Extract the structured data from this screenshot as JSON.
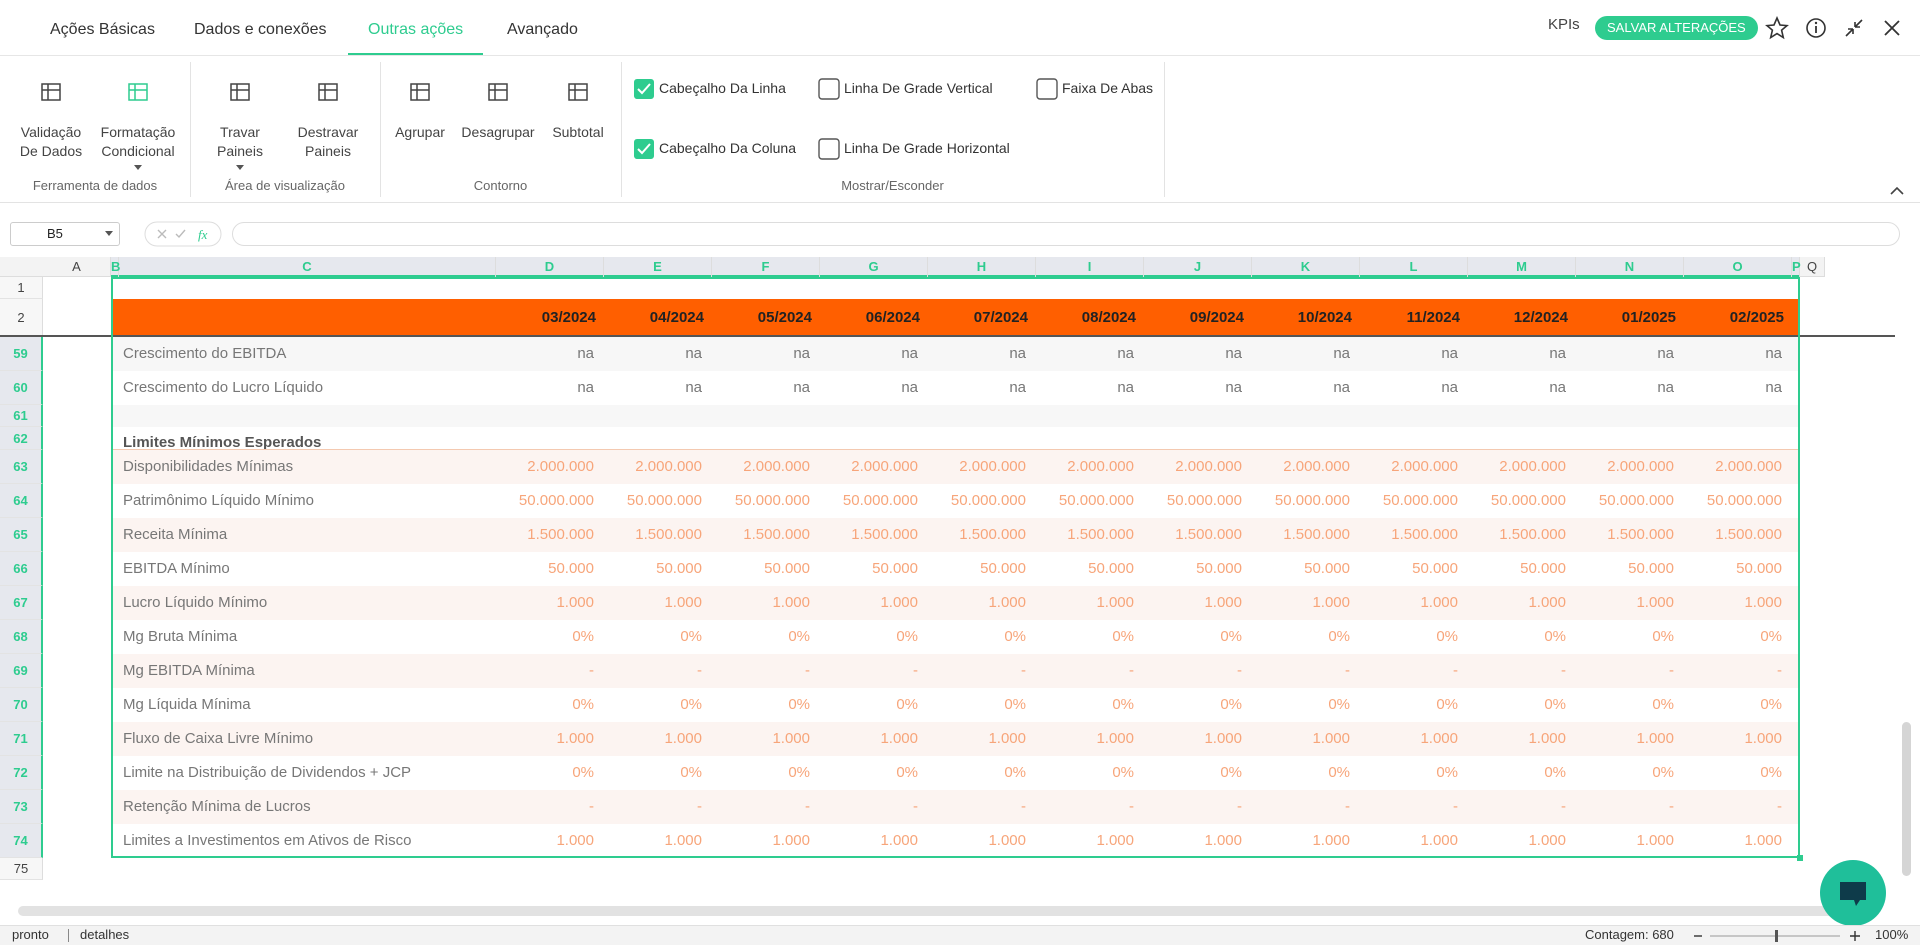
{
  "tabs": [
    "Ações Básicas",
    "Dados e conexões",
    "Outras ações",
    "Avançado"
  ],
  "active_tab": 2,
  "header_right": {
    "kpis": "KPIs",
    "save_button": "SALVAR ALTERAÇÕES"
  },
  "ribbon": {
    "groups": [
      {
        "label": "Ferramenta de dados",
        "buttons": [
          {
            "lines": [
              "Validação",
              "De Dados"
            ]
          },
          {
            "lines": [
              "Formatação",
              "Condicional"
            ],
            "dropdown": true
          }
        ]
      },
      {
        "label": "Área de visualização",
        "buttons": [
          {
            "lines": [
              "Travar",
              "Paineis"
            ],
            "dropdown": true
          },
          {
            "lines": [
              "Destravar",
              "Paineis"
            ]
          }
        ]
      },
      {
        "label": "Contorno",
        "buttons": [
          {
            "lines": [
              "Agrupar"
            ]
          },
          {
            "lines": [
              "Desagrupar"
            ]
          },
          {
            "lines": [
              "Subtotal"
            ]
          }
        ]
      }
    ],
    "checkbox_group": {
      "label": "Mostrar/Esconder",
      "checkboxes": [
        {
          "label": "Cabeçalho Da Linha",
          "checked": true
        },
        {
          "label": "Cabeçalho Da Coluna",
          "checked": true
        },
        {
          "label": "Linha De Grade Vertical",
          "checked": false
        },
        {
          "label": "Linha De Grade Horizontal",
          "checked": false
        },
        {
          "label": "Faixa De Abas",
          "checked": false
        }
      ]
    }
  },
  "formula_bar": {
    "cell_ref": "B5"
  },
  "sheet": {
    "columns": [
      "A",
      "B",
      "C",
      "D",
      "E",
      "F",
      "G",
      "H",
      "I",
      "J",
      "K",
      "L",
      "M",
      "N",
      "O",
      "P",
      "Q"
    ],
    "top_rows": [
      1,
      2
    ],
    "date_header": [
      "03/2024",
      "04/2024",
      "05/2024",
      "06/2024",
      "07/2024",
      "08/2024",
      "09/2024",
      "10/2024",
      "11/2024",
      "12/2024",
      "01/2025",
      "02/2025"
    ],
    "rows": [
      {
        "number": 59,
        "label": "Crescimento do EBITDA",
        "values": [
          "na",
          "na",
          "na",
          "na",
          "na",
          "na",
          "na",
          "na",
          "na",
          "na",
          "na",
          "na"
        ]
      },
      {
        "number": 60,
        "label": "Crescimento do Lucro Líquido",
        "values": [
          "na",
          "na",
          "na",
          "na",
          "na",
          "na",
          "na",
          "na",
          "na",
          "na",
          "na",
          "na"
        ]
      },
      {
        "number": 61
      },
      {
        "number": 62,
        "label": "Limites Mínimos Esperados",
        "bold": true
      },
      {
        "number": 63,
        "label": "Disponibilidades Mínimas",
        "values": [
          "2.000.000",
          "2.000.000",
          "2.000.000",
          "2.000.000",
          "2.000.000",
          "2.000.000",
          "2.000.000",
          "2.000.000",
          "2.000.000",
          "2.000.000",
          "2.000.000",
          "2.000.000"
        ]
      },
      {
        "number": 64,
        "label": "Patrimônimo Líquido Mínimo",
        "values": [
          "50.000.000",
          "50.000.000",
          "50.000.000",
          "50.000.000",
          "50.000.000",
          "50.000.000",
          "50.000.000",
          "50.000.000",
          "50.000.000",
          "50.000.000",
          "50.000.000",
          "50.000.000"
        ]
      },
      {
        "number": 65,
        "label": "Receita Mínima",
        "values": [
          "1.500.000",
          "1.500.000",
          "1.500.000",
          "1.500.000",
          "1.500.000",
          "1.500.000",
          "1.500.000",
          "1.500.000",
          "1.500.000",
          "1.500.000",
          "1.500.000",
          "1.500.000"
        ]
      },
      {
        "number": 66,
        "label": "EBITDA Mínimo",
        "values": [
          "50.000",
          "50.000",
          "50.000",
          "50.000",
          "50.000",
          "50.000",
          "50.000",
          "50.000",
          "50.000",
          "50.000",
          "50.000",
          "50.000"
        ]
      },
      {
        "number": 67,
        "label": "Lucro Líquido Mínimo",
        "values": [
          "1.000",
          "1.000",
          "1.000",
          "1.000",
          "1.000",
          "1.000",
          "1.000",
          "1.000",
          "1.000",
          "1.000",
          "1.000",
          "1.000"
        ]
      },
      {
        "number": 68,
        "label": "Mg Bruta Mínima",
        "values": [
          "0%",
          "0%",
          "0%",
          "0%",
          "0%",
          "0%",
          "0%",
          "0%",
          "0%",
          "0%",
          "0%",
          "0%"
        ]
      },
      {
        "number": 69,
        "label": "Mg EBITDA Mínima",
        "values": [
          "-",
          "-",
          "-",
          "-",
          "-",
          "-",
          "-",
          "-",
          "-",
          "-",
          "-",
          "-"
        ]
      },
      {
        "number": 70,
        "label": "Mg Líquida Mínima",
        "values": [
          "0%",
          "0%",
          "0%",
          "0%",
          "0%",
          "0%",
          "0%",
          "0%",
          "0%",
          "0%",
          "0%",
          "0%"
        ]
      },
      {
        "number": 71,
        "label": "Fluxo de Caixa Livre Mínimo",
        "values": [
          "1.000",
          "1.000",
          "1.000",
          "1.000",
          "1.000",
          "1.000",
          "1.000",
          "1.000",
          "1.000",
          "1.000",
          "1.000",
          "1.000"
        ]
      },
      {
        "number": 72,
        "label": "Limite na Distribuição de Dividendos + JCP",
        "values": [
          "0%",
          "0%",
          "0%",
          "0%",
          "0%",
          "0%",
          "0%",
          "0%",
          "0%",
          "0%",
          "0%",
          "0%"
        ]
      },
      {
        "number": 73,
        "label": "Retenção Mínima de Lucros",
        "values": [
          "-",
          "-",
          "-",
          "-",
          "-",
          "-",
          "-",
          "-",
          "-",
          "-",
          "-",
          "-"
        ]
      },
      {
        "number": 74,
        "label": "Limites a Investimentos em Ativos de Risco",
        "values": [
          "1.000",
          "1.000",
          "1.000",
          "1.000",
          "1.000",
          "1.000",
          "1.000",
          "1.000",
          "1.000",
          "1.000",
          "1.000",
          "1.000"
        ]
      }
    ],
    "last_row": 75
  },
  "status_bar": {
    "state": "pronto",
    "details": "detalhes",
    "count": "Contagem: 680",
    "zoom": "100%"
  }
}
